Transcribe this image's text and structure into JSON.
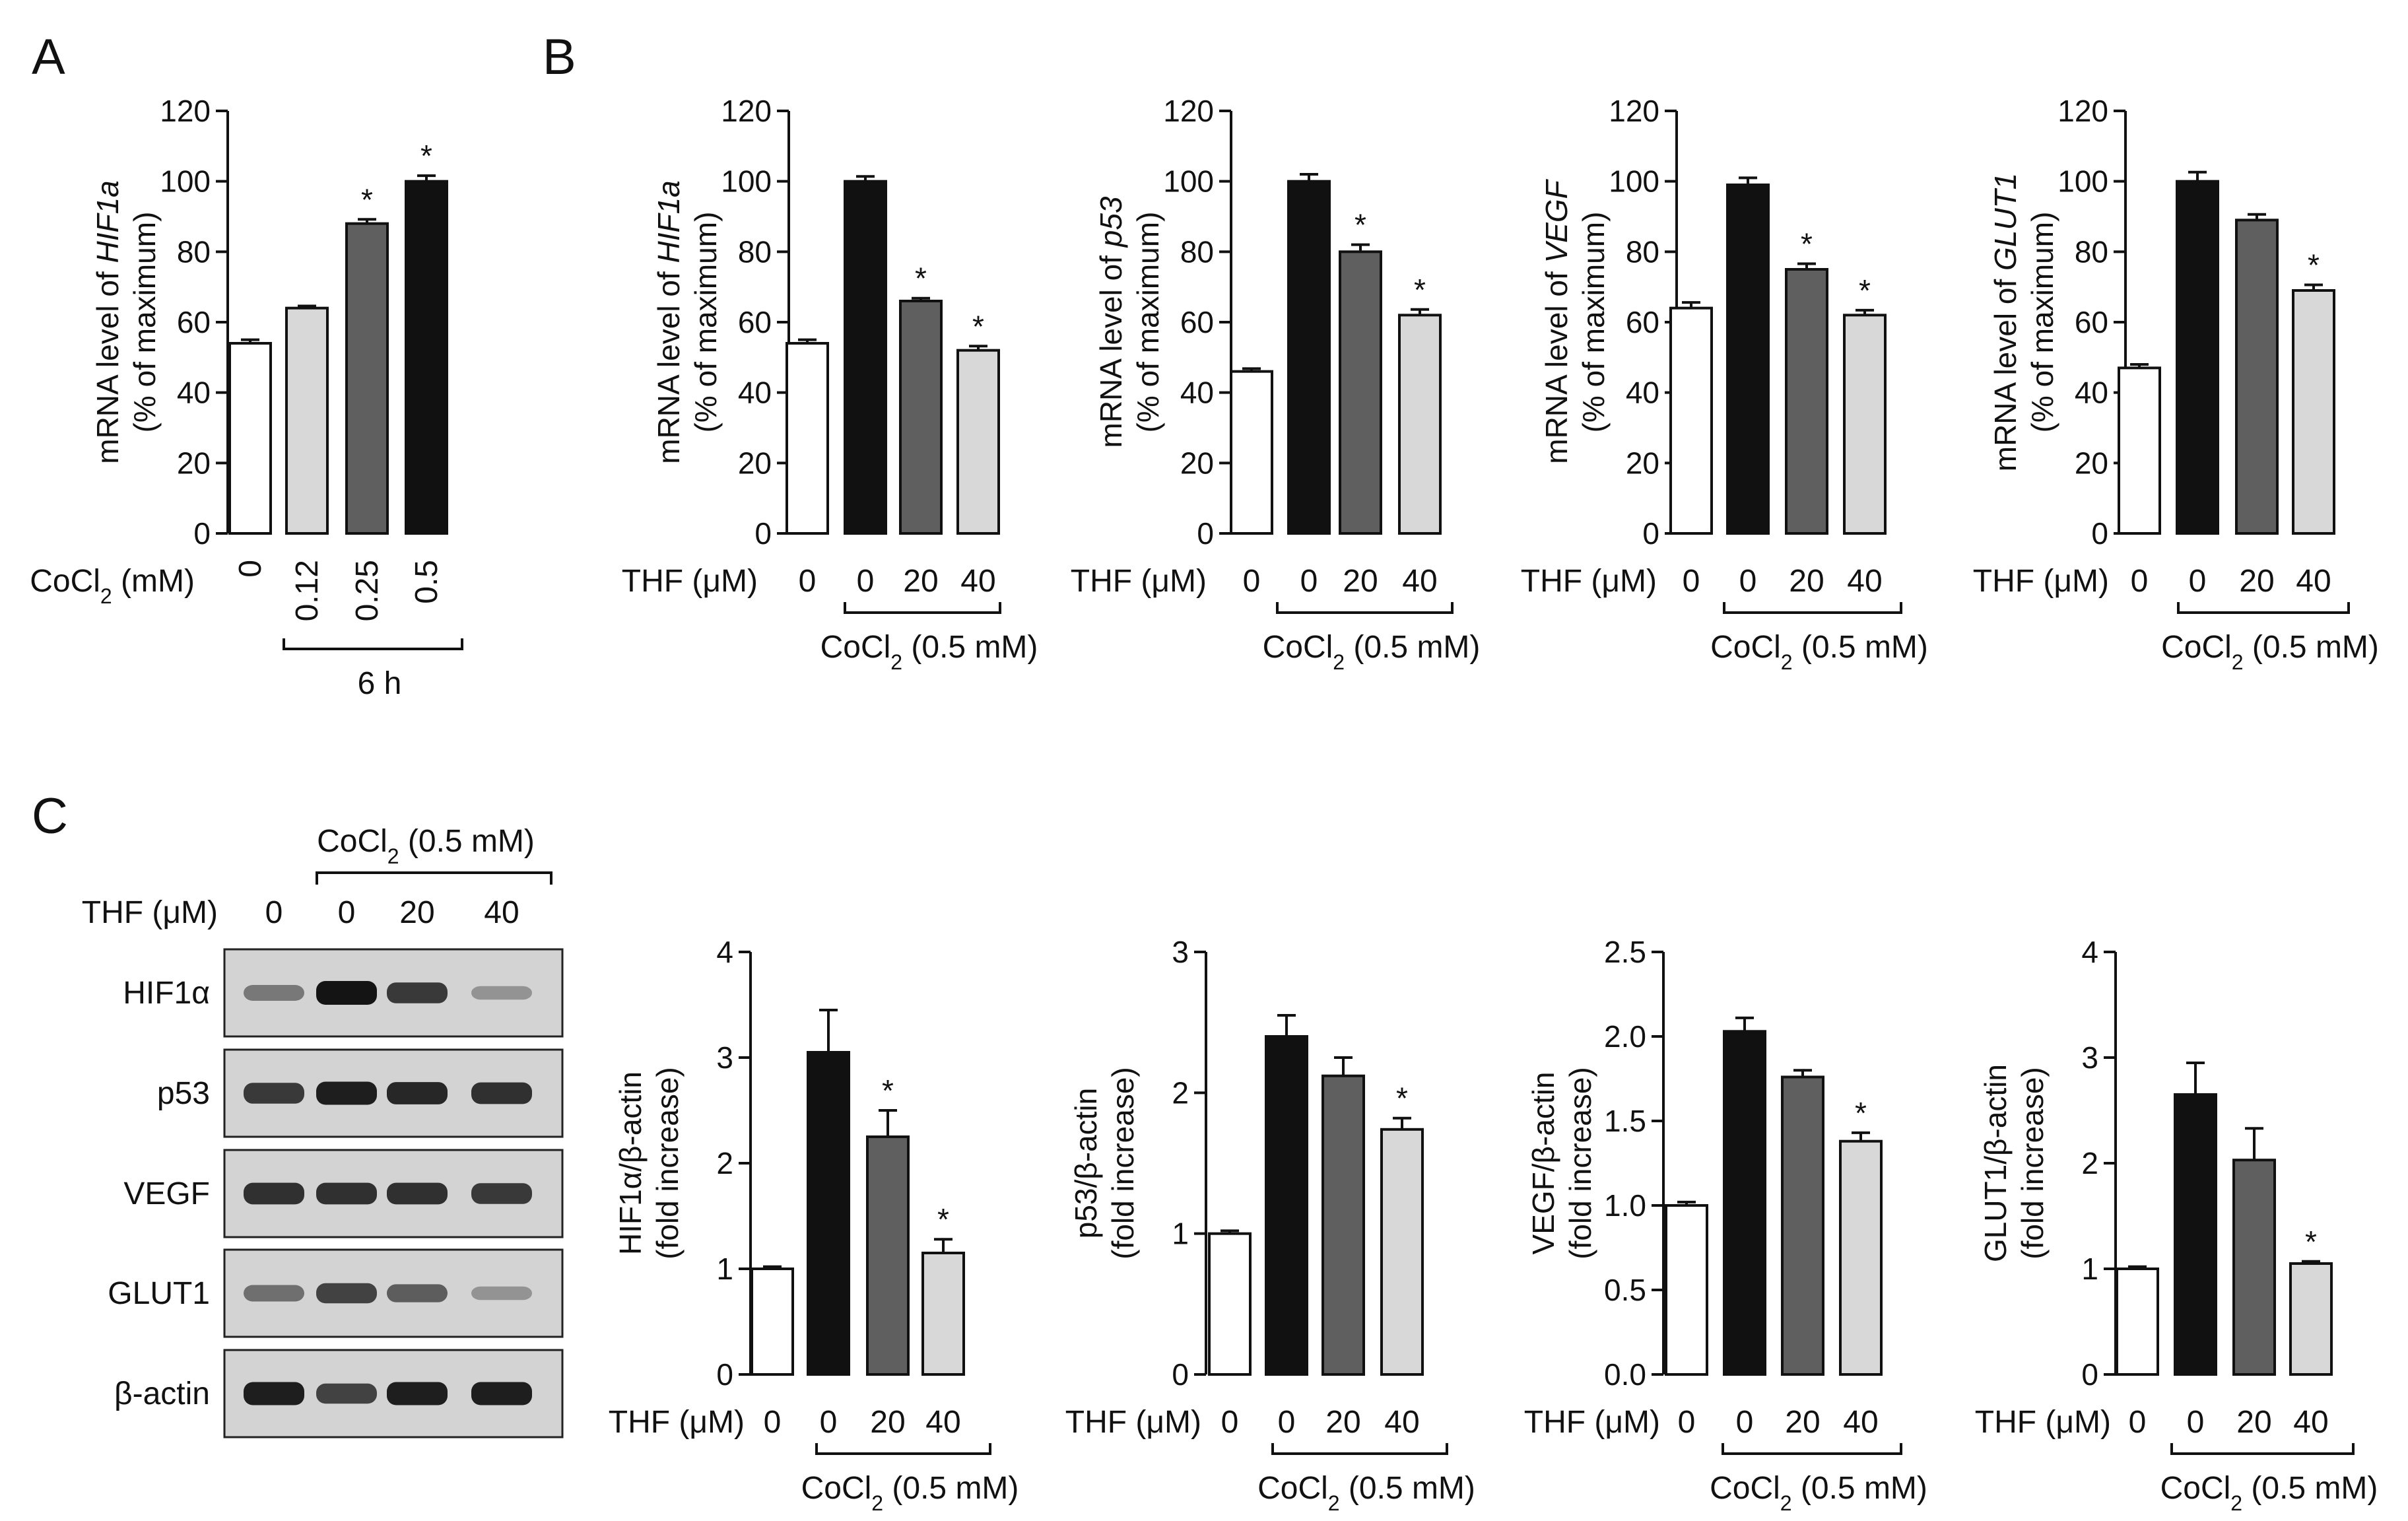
{
  "panels": {
    "A": "A",
    "B": "B",
    "C": "C"
  },
  "colors": {
    "white": "#ffffff",
    "black": "#111111",
    "dark_gray": "#5f5f5f",
    "light_gray": "#d8d8d8"
  },
  "chart_data": [
    {
      "id": "A1",
      "panel": "A",
      "type": "bar",
      "ylabel_prefix": "mRNA level of ",
      "gene": "HIF1a",
      "ylabel_line2": "(% of maximum)",
      "yticks": [
        "0",
        "20",
        "40",
        "60",
        "80",
        "100",
        "120"
      ],
      "ylim": [
        0,
        120
      ],
      "row_label": "CoCl2 (mM)",
      "categories": [
        "0",
        "0.12",
        "0.25",
        "0.5"
      ],
      "values": [
        54,
        64,
        88,
        100
      ],
      "errors": [
        1,
        0.6,
        1.2,
        1.6
      ],
      "colors": [
        "white",
        "light_gray",
        "dark_gray",
        "black"
      ],
      "stars": [
        "",
        "",
        "*",
        "*"
      ],
      "group_label": "6 h"
    },
    {
      "id": "B1",
      "panel": "B",
      "type": "bar",
      "ylabel_prefix": "mRNA level of ",
      "gene": "HIF1a",
      "ylabel_line2": "(% of maximum)",
      "yticks": [
        "0",
        "20",
        "40",
        "60",
        "80",
        "100",
        "120"
      ],
      "ylim": [
        0,
        120
      ],
      "row_label": "THF (μM)",
      "categories": [
        "0",
        "0",
        "20",
        "40"
      ],
      "values": [
        54,
        100,
        66,
        52
      ],
      "errors": [
        1,
        1.4,
        0.8,
        1.2
      ],
      "colors": [
        "white",
        "black",
        "dark_gray",
        "light_gray"
      ],
      "stars": [
        "",
        "",
        "*",
        "*"
      ],
      "group_label": "CoCl2 (0.5 mM)"
    },
    {
      "id": "B2",
      "panel": "B",
      "type": "bar",
      "ylabel_prefix": "mRNA level of ",
      "gene": "p53",
      "ylabel_line2": "(% of maximum)",
      "yticks": [
        "0",
        "20",
        "40",
        "60",
        "80",
        "100",
        "120"
      ],
      "ylim": [
        0,
        120
      ],
      "row_label": "THF (μM)",
      "categories": [
        "0",
        "0",
        "20",
        "40"
      ],
      "values": [
        46,
        100,
        80,
        62
      ],
      "errors": [
        0.8,
        2,
        2,
        1.6
      ],
      "colors": [
        "white",
        "black",
        "dark_gray",
        "light_gray"
      ],
      "stars": [
        "",
        "",
        "*",
        "*"
      ],
      "group_label": "CoCl2 (0.5 mM)"
    },
    {
      "id": "B3",
      "panel": "B",
      "type": "bar",
      "ylabel_prefix": "mRNA level of ",
      "gene": "VEGF",
      "ylabel_line2": "(% of maximum)",
      "yticks": [
        "0",
        "20",
        "40",
        "60",
        "80",
        "100",
        "120"
      ],
      "ylim": [
        0,
        120
      ],
      "row_label": "THF (μM)",
      "categories": [
        "0",
        "0",
        "20",
        "40"
      ],
      "values": [
        64,
        99,
        75,
        62
      ],
      "errors": [
        1.6,
        2,
        1.6,
        1.4
      ],
      "colors": [
        "white",
        "black",
        "dark_gray",
        "light_gray"
      ],
      "stars": [
        "",
        "",
        "*",
        "*"
      ],
      "group_label": "CoCl2 (0.5 mM)"
    },
    {
      "id": "B4",
      "panel": "B",
      "type": "bar",
      "ylabel_prefix": "mRNA level of ",
      "gene": "GLUT1",
      "ylabel_line2": "(% of maximum)",
      "yticks": [
        "0",
        "20",
        "40",
        "60",
        "80",
        "100",
        "120"
      ],
      "ylim": [
        0,
        120
      ],
      "row_label": "THF (μM)",
      "categories": [
        "0",
        "0",
        "20",
        "40"
      ],
      "values": [
        47,
        100,
        89,
        69
      ],
      "errors": [
        1,
        2.6,
        1.6,
        1.6
      ],
      "colors": [
        "white",
        "black",
        "dark_gray",
        "light_gray"
      ],
      "stars": [
        "",
        "",
        "",
        "*"
      ],
      "group_label": "CoCl2 (0.5 mM)"
    },
    {
      "id": "C1",
      "panel": "C",
      "type": "bar",
      "ylabel_prefix": "HIF1α/β-actin",
      "gene": "",
      "ylabel_line2": "(fold increase)",
      "yticks": [
        "0",
        "1",
        "2",
        "3",
        "4"
      ],
      "ylim": [
        0,
        4
      ],
      "row_label": "THF (μM)",
      "categories": [
        "0",
        "0",
        "20",
        "40"
      ],
      "values": [
        1.0,
        3.05,
        2.25,
        1.15
      ],
      "errors": [
        0.02,
        0.4,
        0.25,
        0.13
      ],
      "colors": [
        "white",
        "black",
        "dark_gray",
        "light_gray"
      ],
      "stars": [
        "",
        "",
        "*",
        "*"
      ],
      "group_label": "CoCl2 (0.5 mM)"
    },
    {
      "id": "C2",
      "panel": "C",
      "type": "bar",
      "ylabel_prefix": "p53/β-actin",
      "gene": "",
      "ylabel_line2": "(fold increase)",
      "yticks": [
        "0",
        "1",
        "2",
        "3"
      ],
      "ylim": [
        0,
        3
      ],
      "row_label": "THF (μM)",
      "categories": [
        "0",
        "0",
        "20",
        "40"
      ],
      "values": [
        1.0,
        2.4,
        2.12,
        1.74
      ],
      "errors": [
        0.02,
        0.15,
        0.13,
        0.08
      ],
      "colors": [
        "white",
        "black",
        "dark_gray",
        "light_gray"
      ],
      "stars": [
        "",
        "",
        "",
        "*"
      ],
      "group_label": "CoCl2 (0.5 mM)"
    },
    {
      "id": "C3",
      "panel": "C",
      "type": "bar",
      "ylabel_prefix": "VEGF/β-actin",
      "gene": "",
      "ylabel_line2": "(fold increase)",
      "yticks": [
        "0.0",
        "0.5",
        "1.0",
        "1.5",
        "2.0",
        "2.5"
      ],
      "ylim": [
        0,
        2.5
      ],
      "row_label": "THF (μM)",
      "categories": [
        "0",
        "0",
        "20",
        "40"
      ],
      "values": [
        1.0,
        2.03,
        1.76,
        1.38
      ],
      "errors": [
        0.02,
        0.08,
        0.04,
        0.05
      ],
      "colors": [
        "white",
        "black",
        "dark_gray",
        "light_gray"
      ],
      "stars": [
        "",
        "",
        "",
        "*"
      ],
      "group_label": "CoCl2 (0.5 mM)"
    },
    {
      "id": "C4",
      "panel": "C",
      "type": "bar",
      "ylabel_prefix": "GLUT1/β-actin",
      "gene": "",
      "ylabel_line2": "(fold increase)",
      "yticks": [
        "0",
        "1",
        "2",
        "3",
        "4"
      ],
      "ylim": [
        0,
        4
      ],
      "row_label": "THF (μM)",
      "categories": [
        "0",
        "0",
        "20",
        "40"
      ],
      "values": [
        1.0,
        2.65,
        2.03,
        1.05
      ],
      "errors": [
        0.02,
        0.3,
        0.3,
        0.02
      ],
      "colors": [
        "white",
        "black",
        "dark_gray",
        "light_gray"
      ],
      "stars": [
        "",
        "",
        "",
        "*"
      ],
      "group_label": "CoCl2 (0.5 mM)"
    }
  ],
  "blot": {
    "header": "CoCl2 (0.5 mM)",
    "row_label": "THF (μM)",
    "lanes": [
      "0",
      "0",
      "20",
      "40"
    ],
    "proteins": [
      {
        "name": "HIF1α",
        "intensity": [
          0.45,
          1.0,
          0.8,
          0.3
        ]
      },
      {
        "name": "p53",
        "intensity": [
          0.8,
          0.95,
          0.9,
          0.85
        ]
      },
      {
        "name": "VEGF",
        "intensity": [
          0.85,
          0.85,
          0.85,
          0.8
        ]
      },
      {
        "name": "GLUT1",
        "intensity": [
          0.5,
          0.75,
          0.6,
          0.3
        ]
      },
      {
        "name": "β-actin",
        "intensity": [
          0.95,
          0.75,
          0.95,
          0.95
        ]
      }
    ]
  }
}
